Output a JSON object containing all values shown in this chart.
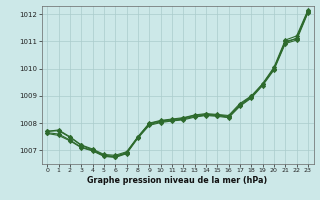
{
  "xlabel": "Graphe pression niveau de la mer (hPa)",
  "background_color": "#cce8e8",
  "grid_color": "#aacccc",
  "line_color": "#2d6a2d",
  "xlim": [
    -0.5,
    23.5
  ],
  "ylim": [
    1006.5,
    1012.3
  ],
  "yticks": [
    1007,
    1008,
    1009,
    1010,
    1011,
    1012
  ],
  "xticks": [
    0,
    1,
    2,
    3,
    4,
    5,
    6,
    7,
    8,
    9,
    10,
    11,
    12,
    13,
    14,
    15,
    16,
    17,
    18,
    19,
    20,
    21,
    22,
    23
  ],
  "series": [
    [
      1007.7,
      1007.75,
      1007.5,
      1007.2,
      1007.05,
      1006.85,
      1006.82,
      1006.95,
      1007.5,
      1008.0,
      1008.1,
      1008.15,
      1008.2,
      1008.3,
      1008.35,
      1008.32,
      1008.28,
      1008.72,
      1009.0,
      1009.42,
      1010.0,
      1010.95,
      1011.12,
      1012.12
    ],
    [
      1007.7,
      1007.72,
      1007.48,
      1007.18,
      1007.02,
      1006.82,
      1006.78,
      1006.92,
      1007.5,
      1007.98,
      1008.08,
      1008.12,
      1008.18,
      1008.28,
      1008.32,
      1008.3,
      1008.25,
      1008.68,
      1008.98,
      1009.45,
      1010.05,
      1011.05,
      1011.2,
      1012.15
    ],
    [
      1007.65,
      1007.6,
      1007.38,
      1007.12,
      1007.0,
      1006.8,
      1006.76,
      1006.9,
      1007.48,
      1007.95,
      1008.05,
      1008.1,
      1008.15,
      1008.25,
      1008.3,
      1008.28,
      1008.22,
      1008.65,
      1008.95,
      1009.42,
      1010.0,
      1011.0,
      1011.1,
      1012.08
    ],
    [
      1007.62,
      1007.55,
      1007.35,
      1007.1,
      1006.98,
      1006.78,
      1006.74,
      1006.88,
      1007.45,
      1007.92,
      1008.02,
      1008.08,
      1008.12,
      1008.22,
      1008.28,
      1008.25,
      1008.2,
      1008.62,
      1008.92,
      1009.38,
      1009.95,
      1010.92,
      1011.05,
      1012.05
    ]
  ]
}
